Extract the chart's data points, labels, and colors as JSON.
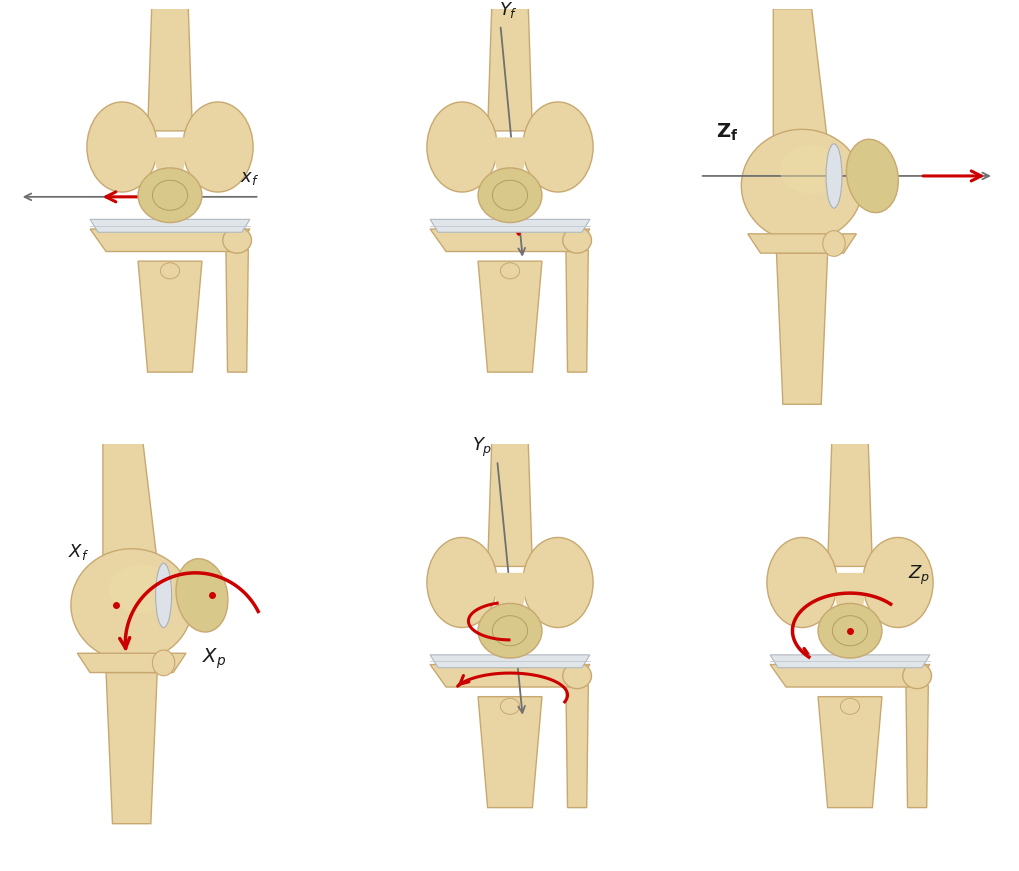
{
  "figure_size": [
    10.2,
    8.71
  ],
  "dpi": 100,
  "background_color": "#ffffff",
  "bone_color": "#e8d5a3",
  "bone_edge_color": "#c8a870",
  "cartilage_color": "#d8dde5",
  "patella_color": "#d4c090",
  "text_color": "#1a1a1a",
  "red_color": "#cc0000",
  "gray_color": "#707070",
  "panels": [
    {
      "row": 0,
      "col": 0,
      "label": "X_f",
      "letter": "X",
      "sub": "f"
    },
    {
      "row": 0,
      "col": 1,
      "label": "Y_f",
      "letter": "Y",
      "sub": "f"
    },
    {
      "row": 0,
      "col": 2,
      "label": "Z_f",
      "letter": "Z",
      "sub": "f",
      "bold": true
    },
    {
      "row": 1,
      "col": 0,
      "label": "X_p",
      "letter": "X",
      "sub": "p",
      "extra": "X_f"
    },
    {
      "row": 1,
      "col": 1,
      "label": "Y_p",
      "letter": "Y",
      "sub": "p"
    },
    {
      "row": 1,
      "col": 2,
      "label": "Z_p",
      "letter": "Z",
      "sub": "p"
    }
  ],
  "lw": 1.0,
  "label_fontsize": 13
}
